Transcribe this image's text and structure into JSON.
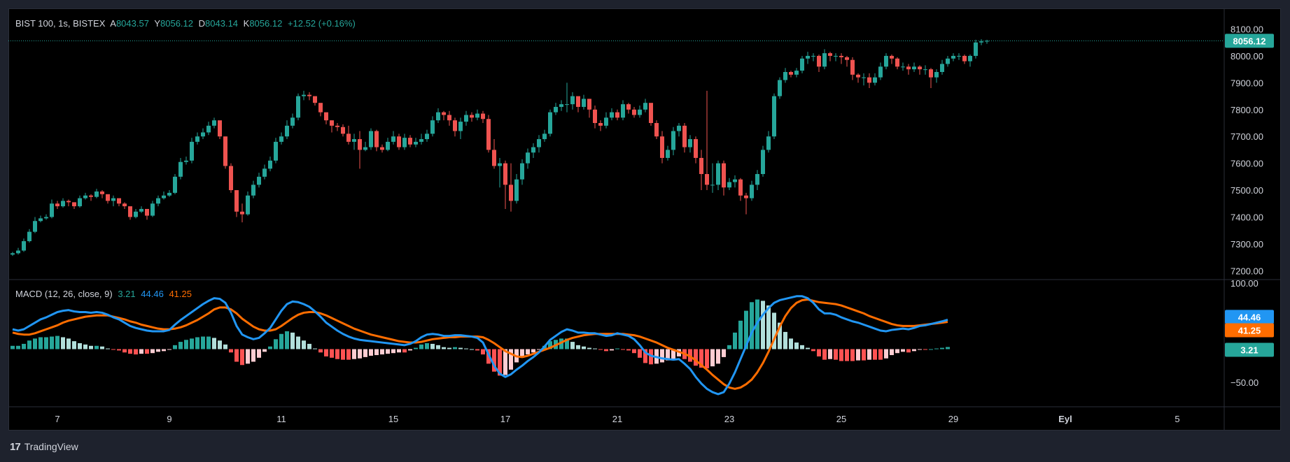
{
  "header": {
    "symbol": "BIST 100, 1s, BISTEX",
    "o_label": "A",
    "o_value": "8043.57",
    "h_label": "Y",
    "h_value": "8056.12",
    "l_label": "D",
    "l_value": "8043.14",
    "c_label": "K",
    "c_value": "8056.12",
    "change": "+12.52 (+0.16%)"
  },
  "macd_legend": {
    "label": "MACD (12, 26, close, 9)",
    "hist": "3.21",
    "macd": "44.46",
    "signal": "41.25"
  },
  "badges": {
    "price": "8056.12",
    "macd": "44.46",
    "signal": "41.25",
    "hist": "3.21"
  },
  "footer": {
    "brand": "TradingView",
    "logo_text": "17"
  },
  "colors": {
    "up": "#26a69a",
    "down": "#ef5350",
    "macd_line": "#2196f3",
    "signal_line": "#ff6d00",
    "hist_pos_strong": "#26a69a",
    "hist_pos_weak": "#b2dfdb",
    "hist_neg_strong": "#ff5252",
    "hist_neg_weak": "#ffcdd2",
    "text": "#d1d4dc",
    "bg": "#000000"
  },
  "chart_data": [
    {
      "type": "candlestick",
      "title": "BIST 100, 1s, BISTEX",
      "y_ticks": [
        "8100.00",
        "8000.00",
        "7900.00",
        "7800.00",
        "7700.00",
        "7600.00",
        "7500.00",
        "7400.00",
        "7300.00",
        "7200.00"
      ],
      "ylim": [
        7180,
        8130
      ],
      "x_tick_labels": [
        "7",
        "9",
        "11",
        "15",
        "17",
        "21",
        "23",
        "25",
        "29",
        "Eyl",
        "5"
      ],
      "x_tick_index": [
        8,
        28,
        48,
        68,
        88,
        108,
        128,
        148,
        168,
        188,
        208
      ],
      "last_price": 8056.12,
      "closes": [
        7265,
        7275,
        7310,
        7345,
        7385,
        7395,
        7400,
        7450,
        7440,
        7460,
        7455,
        7440,
        7470,
        7480,
        7475,
        7495,
        7485,
        7460,
        7470,
        7450,
        7440,
        7400,
        7420,
        7430,
        7405,
        7450,
        7470,
        7480,
        7490,
        7550,
        7605,
        7610,
        7680,
        7700,
        7715,
        7740,
        7760,
        7700,
        7590,
        7500,
        7420,
        7410,
        7480,
        7520,
        7550,
        7580,
        7610,
        7680,
        7700,
        7740,
        7770,
        7850,
        7855,
        7850,
        7825,
        7790,
        7760,
        7740,
        7735,
        7710,
        7680,
        7690,
        7650,
        7660,
        7720,
        7660,
        7650,
        7680,
        7700,
        7660,
        7695,
        7670,
        7680,
        7690,
        7710,
        7760,
        7790,
        7780,
        7760,
        7720,
        7755,
        7780,
        7770,
        7785,
        7765,
        7650,
        7590,
        7600,
        7520,
        7460,
        7540,
        7600,
        7640,
        7660,
        7690,
        7710,
        7790,
        7810,
        7820,
        7820,
        7850,
        7810,
        7840,
        7800,
        7750,
        7740,
        7770,
        7790,
        7770,
        7820,
        7800,
        7780,
        7800,
        7825,
        7750,
        7700,
        7620,
        7650,
        7720,
        7740,
        7660,
        7690,
        7620,
        7560,
        7520,
        7520,
        7600,
        7510,
        7530,
        7540,
        7480,
        7470,
        7520,
        7560,
        7650,
        7700,
        7850,
        7910,
        7940,
        7930,
        7945,
        7990,
        8000,
        8000,
        7960,
        8010,
        8000,
        8000,
        7995,
        7985,
        7930,
        7920,
        7920,
        7900,
        7920,
        7960,
        8000,
        7990,
        7960,
        7960,
        7950,
        7960,
        7950,
        7950,
        7920,
        7940,
        7970,
        7990,
        8000,
        8000,
        7980,
        8000,
        8050,
        8054,
        8056
      ],
      "highs": [
        7270,
        7285,
        7320,
        7355,
        7400,
        7405,
        7410,
        7465,
        7460,
        7470,
        7465,
        7455,
        7480,
        7490,
        7485,
        7505,
        7500,
        7475,
        7480,
        7460,
        7455,
        7430,
        7430,
        7440,
        7420,
        7460,
        7480,
        7495,
        7500,
        7560,
        7620,
        7625,
        7695,
        7715,
        7730,
        7755,
        7770,
        7755,
        7700,
        7600,
        7500,
        7450,
        7495,
        7535,
        7565,
        7595,
        7625,
        7695,
        7715,
        7760,
        7785,
        7860,
        7870,
        7865,
        7850,
        7810,
        7785,
        7760,
        7750,
        7745,
        7740,
        7710,
        7720,
        7680,
        7730,
        7725,
        7670,
        7695,
        7720,
        7710,
        7710,
        7705,
        7695,
        7710,
        7725,
        7775,
        7805,
        7795,
        7795,
        7770,
        7770,
        7795,
        7790,
        7800,
        7795,
        7780,
        7690,
        7620,
        7610,
        7600,
        7560,
        7615,
        7655,
        7675,
        7705,
        7725,
        7800,
        7825,
        7835,
        7900,
        7865,
        7845,
        7855,
        7840,
        7815,
        7760,
        7790,
        7805,
        7800,
        7835,
        7825,
        7810,
        7815,
        7840,
        7820,
        7760,
        7720,
        7665,
        7735,
        7750,
        7750,
        7705,
        7700,
        7650,
        7870,
        7600,
        7610,
        7610,
        7545,
        7555,
        7545,
        7490,
        7535,
        7575,
        7665,
        7720,
        7860,
        7920,
        7955,
        7945,
        7955,
        8000,
        8015,
        8010,
        8005,
        8025,
        8015,
        8010,
        8010,
        8000,
        7995,
        7935,
        7935,
        7935,
        7935,
        7975,
        8010,
        8005,
        7995,
        7975,
        7970,
        7975,
        7965,
        7965,
        7955,
        7950,
        7985,
        8000,
        8010,
        8010,
        8005,
        8005,
        8060,
        8062,
        8060
      ],
      "lows": [
        7255,
        7260,
        7270,
        7305,
        7340,
        7380,
        7390,
        7395,
        7430,
        7435,
        7440,
        7430,
        7435,
        7465,
        7460,
        7470,
        7470,
        7450,
        7440,
        7440,
        7430,
        7390,
        7395,
        7415,
        7390,
        7400,
        7440,
        7465,
        7475,
        7485,
        7540,
        7595,
        7600,
        7670,
        7690,
        7705,
        7730,
        7690,
        7580,
        7490,
        7400,
        7380,
        7405,
        7470,
        7510,
        7540,
        7570,
        7600,
        7670,
        7690,
        7730,
        7760,
        7835,
        7835,
        7815,
        7775,
        7745,
        7715,
        7720,
        7700,
        7670,
        7650,
        7580,
        7645,
        7650,
        7645,
        7640,
        7645,
        7670,
        7650,
        7650,
        7660,
        7660,
        7670,
        7680,
        7700,
        7750,
        7760,
        7740,
        7700,
        7690,
        7740,
        7755,
        7760,
        7750,
        7640,
        7580,
        7510,
        7430,
        7420,
        7450,
        7520,
        7580,
        7620,
        7640,
        7680,
        7700,
        7780,
        7795,
        7790,
        7800,
        7790,
        7800,
        7770,
        7730,
        7720,
        7730,
        7760,
        7760,
        7760,
        7785,
        7770,
        7770,
        7790,
        7740,
        7690,
        7600,
        7610,
        7630,
        7700,
        7640,
        7640,
        7600,
        7500,
        7500,
        7490,
        7500,
        7480,
        7500,
        7510,
        7460,
        7410,
        7460,
        7500,
        7550,
        7640,
        7690,
        7840,
        7900,
        7920,
        7920,
        7935,
        7970,
        7980,
        7940,
        7950,
        7980,
        7980,
        7970,
        7960,
        7910,
        7900,
        7890,
        7880,
        7890,
        7910,
        7950,
        7970,
        7950,
        7945,
        7930,
        7940,
        7930,
        7930,
        7880,
        7900,
        7930,
        7960,
        7980,
        7985,
        7970,
        7960,
        7990,
        8040,
        8045
      ]
    },
    {
      "type": "macd",
      "title": "MACD (12, 26, close, 9)",
      "y_ticks": [
        "100.00",
        "-50.00"
      ],
      "ylim": [
        -85,
        103
      ],
      "last_values": {
        "histogram": 3.21,
        "macd": 44.46,
        "signal": 41.25
      },
      "macd": [
        30,
        28,
        30,
        35,
        40,
        45,
        48,
        52,
        56,
        58,
        59,
        57,
        56,
        56,
        55,
        56,
        55,
        52,
        48,
        45,
        40,
        35,
        32,
        30,
        28,
        27,
        27,
        27,
        29,
        37,
        44,
        50,
        56,
        62,
        68,
        73,
        77,
        76,
        70,
        55,
        35,
        22,
        18,
        15,
        17,
        24,
        32,
        45,
        58,
        68,
        72,
        71,
        68,
        64,
        57,
        49,
        40,
        34,
        28,
        23,
        19,
        16,
        14,
        13,
        12,
        11,
        10,
        9,
        8,
        7,
        6,
        8,
        12,
        18,
        22,
        23,
        22,
        20,
        20,
        21,
        21,
        20,
        19,
        17,
        10,
        -8,
        -25,
        -37,
        -42,
        -38,
        -31,
        -25,
        -18,
        -12,
        -5,
        4,
        14,
        20,
        26,
        30,
        28,
        25,
        25,
        24,
        24,
        22,
        20,
        21,
        24,
        22,
        20,
        15,
        6,
        -5,
        -10,
        -12,
        -14,
        -15,
        -16,
        -15,
        -22,
        -30,
        -42,
        -52,
        -60,
        -65,
        -68,
        -65,
        -52,
        -35,
        -15,
        5,
        25,
        40,
        52,
        62,
        70,
        74,
        76,
        78,
        80,
        80,
        77,
        70,
        60,
        54,
        54,
        52,
        48,
        45,
        42,
        40,
        37,
        34,
        31,
        28,
        27,
        29,
        30,
        31,
        30,
        32,
        35,
        36,
        38,
        40,
        42,
        44.46
      ],
      "signal": [
        25,
        23,
        22,
        22,
        24,
        27,
        30,
        33,
        36,
        40,
        43,
        45,
        47,
        49,
        50,
        51,
        51,
        51,
        49,
        47,
        45,
        42,
        40,
        37,
        35,
        33,
        31,
        30,
        30,
        31,
        33,
        36,
        40,
        44,
        49,
        54,
        60,
        63,
        63,
        60,
        54,
        46,
        40,
        34,
        30,
        28,
        28,
        30,
        35,
        41,
        47,
        52,
        55,
        56,
        56,
        54,
        51,
        47,
        43,
        39,
        35,
        31,
        28,
        25,
        22,
        20,
        18,
        16,
        14,
        12,
        11,
        10,
        10,
        11,
        13,
        15,
        16,
        17,
        18,
        18,
        19,
        19,
        19,
        19,
        18,
        14,
        9,
        3,
        -3,
        -7,
        -11,
        -12,
        -10,
        -7,
        -4,
        -1,
        2,
        6,
        10,
        14,
        17,
        19,
        21,
        22,
        23,
        23,
        23,
        23,
        23,
        23,
        22,
        21,
        19,
        16,
        13,
        10,
        6,
        2,
        -1,
        -4,
        -7,
        -11,
        -17,
        -24,
        -31,
        -39,
        -46,
        -53,
        -58,
        -60,
        -58,
        -53,
        -46,
        -35,
        -21,
        -4,
        15,
        34,
        50,
        62,
        70,
        74,
        75,
        73,
        71,
        70,
        69,
        68,
        66,
        63,
        60,
        57,
        54,
        50,
        47,
        44,
        41,
        38,
        36,
        35,
        35,
        35,
        36,
        37,
        38,
        39,
        40,
        41.25
      ]
    }
  ]
}
